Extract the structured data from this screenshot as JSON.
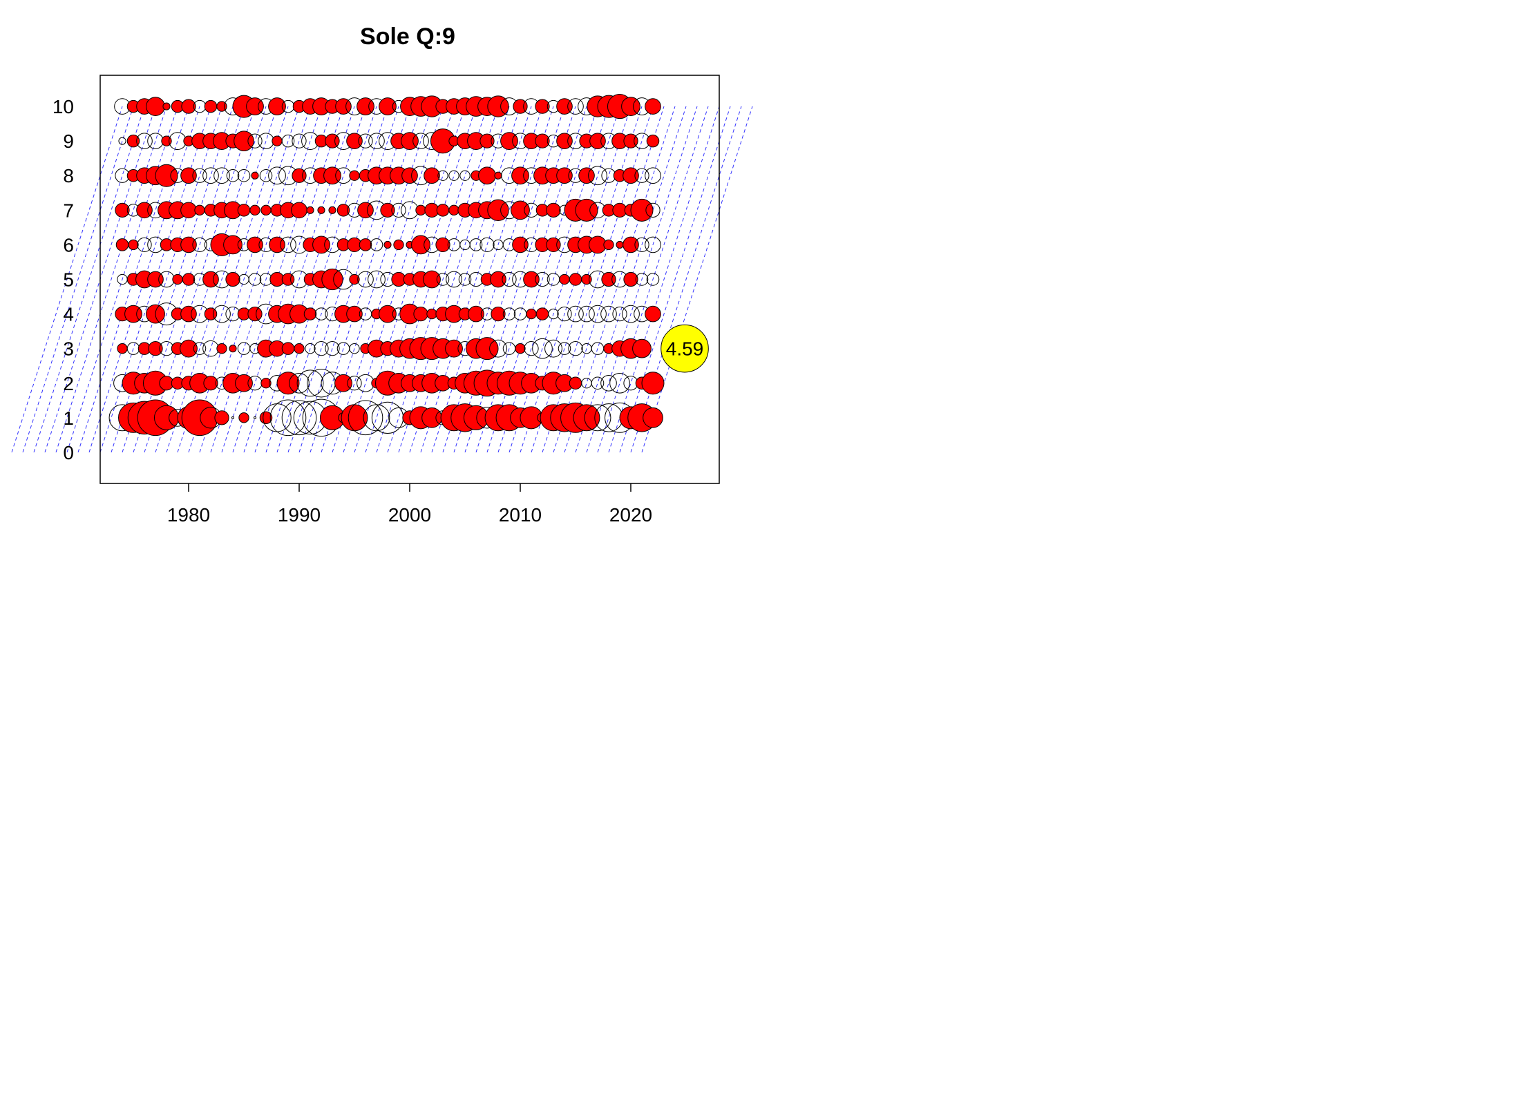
{
  "chart_data": {
    "type": "bubble",
    "title": "Sole Q:9",
    "xlabel": "",
    "ylabel": "",
    "xlim": [
      1972,
      2028
    ],
    "ylim": [
      -0.9,
      10.9
    ],
    "x_ticks": [
      1980,
      1990,
      2000,
      2010,
      2020
    ],
    "x_tick_labels": [
      "1980",
      "1990",
      "2000",
      "2010",
      "2020"
    ],
    "y_ticks": [
      0,
      1,
      2,
      3,
      4,
      5,
      6,
      7,
      8,
      9,
      10
    ],
    "y_tick_labels": [
      "0",
      "1",
      "2",
      "3",
      "4",
      "5",
      "6",
      "7",
      "8",
      "9",
      "10"
    ],
    "years_from": 1974,
    "years_to": 2022,
    "ages": [
      1,
      2,
      3,
      4,
      5,
      6,
      7,
      8,
      9,
      10
    ],
    "cohort_lines": {
      "color": "#3333ff",
      "dash": "dashed",
      "age_from": 0,
      "age_to": 10,
      "first_cohort": 1964,
      "last_cohort": 2021
    },
    "fill_positive": "#ff0000",
    "fill_negative": "none",
    "residuals": {
      "1": [
        -1.4,
        1.8,
        2.2,
        2.6,
        1.2,
        -0.6,
        1.0,
        2.6,
        -0.9,
        0.4,
        0,
        0.2,
        0,
        0.3,
        -1.6,
        -2.6,
        -2.4,
        -2.2,
        -2.8,
        1.2,
        0.2,
        1.4,
        -2.4,
        -1.4,
        -2.0,
        -0.8,
        0.4,
        1.0,
        0.8,
        -0.4,
        1.4,
        1.6,
        1.2,
        -0.9,
        1.4,
        1.4,
        0.8,
        1.0,
        0.2,
        1.4,
        1.6,
        1.8,
        1.4,
        -1.4,
        -1.6,
        -1.8,
        1.0,
        1.6,
        0.8
      ],
      "2": [
        -0.6,
        1.0,
        0.8,
        1.2,
        0.4,
        0.3,
        0.4,
        0.8,
        0.4,
        -0.3,
        0.8,
        0.6,
        -0.4,
        0.2,
        -0.5,
        1.0,
        -0.8,
        -1.4,
        -1.6,
        -1.0,
        0.6,
        -0.4,
        -0.6,
        0.2,
        1.2,
        0.8,
        0.6,
        0.6,
        0.8,
        0.5,
        0.3,
        0.8,
        1.2,
        1.4,
        1.0,
        1.2,
        1.0,
        0.8,
        0.4,
        1.0,
        0.6,
        0.3,
        -0.2,
        -0.3,
        -0.5,
        -0.8,
        -0.4,
        0.3,
        1.0
      ],
      "3": [
        0.2,
        -0.3,
        0.3,
        0.4,
        -0.4,
        0.3,
        0.6,
        -0.3,
        -0.5,
        0.2,
        0.1,
        -0.3,
        -0.2,
        0.6,
        0.5,
        0.3,
        0.2,
        -0.2,
        -0.4,
        -0.4,
        -0.3,
        -0.2,
        0.2,
        0.6,
        0.4,
        0.6,
        0.8,
        1.0,
        1.0,
        0.8,
        0.6,
        -0.4,
        0.8,
        1.0,
        -0.6,
        -0.3,
        0.2,
        -0.4,
        -0.8,
        -0.6,
        -0.3,
        -0.4,
        -0.2,
        -0.3,
        0.2,
        0.5,
        0.8,
        0.7,
        4.59
      ],
      "4": [
        0.4,
        0.6,
        -0.5,
        0.7,
        -1.0,
        0.3,
        0.5,
        -0.6,
        0.3,
        -0.6,
        -0.4,
        0.3,
        0.4,
        -0.8,
        0.6,
        0.8,
        0.7,
        0.3,
        -0.3,
        -0.4,
        0.6,
        0.5,
        -0.3,
        0.2,
        0.6,
        -0.3,
        0.8,
        0.4,
        0.2,
        0.4,
        0.6,
        0.3,
        0.5,
        -0.3,
        0.4,
        -0.3,
        -0.3,
        0.2,
        0.3,
        -0.2,
        -0.4,
        -0.5,
        -0.5,
        -0.6,
        -0.5,
        -0.4,
        -0.6,
        -0.5,
        0.5
      ],
      "5": [
        -0.2,
        0.3,
        0.6,
        0.5,
        -0.5,
        0.2,
        0.3,
        -0.3,
        0.5,
        -0.6,
        0.4,
        -0.2,
        -0.3,
        -0.3,
        0.4,
        0.3,
        -0.6,
        0.3,
        0.6,
        0.9,
        -0.8,
        0.2,
        -0.5,
        -0.6,
        -0.4,
        0.4,
        0.3,
        0.5,
        0.6,
        -0.3,
        -0.5,
        -0.3,
        -0.4,
        0.3,
        0.5,
        -0.4,
        -0.5,
        0.5,
        -0.4,
        -0.3,
        0.2,
        0.3,
        0.2,
        -0.6,
        0.4,
        -0.5,
        0.4,
        -0.3,
        -0.3
      ],
      "6": [
        0.3,
        0.2,
        -0.4,
        -0.5,
        0.3,
        0.4,
        0.5,
        -0.4,
        -0.3,
        1.0,
        0.7,
        -0.3,
        0.5,
        -0.4,
        0.5,
        -0.5,
        -0.6,
        0.4,
        0.6,
        -0.5,
        0.3,
        0.4,
        0.3,
        -0.3,
        0.1,
        0.2,
        0.1,
        0.7,
        -0.5,
        0.4,
        -0.3,
        -0.2,
        -0.3,
        -0.4,
        -0.2,
        -0.3,
        0.5,
        -0.4,
        0.4,
        0.4,
        -0.5,
        0.5,
        0.6,
        0.6,
        0.2,
        0.1,
        0.5,
        -0.4,
        -0.5
      ],
      "7": [
        0.4,
        -0.3,
        0.5,
        -0.5,
        0.6,
        0.6,
        0.5,
        0.2,
        0.3,
        0.5,
        0.6,
        0.3,
        0.2,
        0.2,
        0.3,
        0.5,
        0.5,
        0.1,
        0.1,
        0.1,
        0.3,
        -0.4,
        0.5,
        -0.7,
        0.4,
        -0.4,
        -0.6,
        0.2,
        0.4,
        0.3,
        0.2,
        0.4,
        0.5,
        0.6,
        0.9,
        -0.6,
        0.7,
        -0.4,
        0.3,
        0.4,
        -0.2,
        1.0,
        1.0,
        -0.5,
        0.3,
        0.4,
        0.3,
        1.0,
        -0.4
      ],
      "8": [
        -0.4,
        0.3,
        0.5,
        0.7,
        1.0,
        -0.4,
        0.5,
        -0.4,
        -0.5,
        -0.5,
        -0.3,
        -0.3,
        0.1,
        -0.3,
        -0.6,
        -0.7,
        0.4,
        -0.5,
        0.5,
        0.6,
        -0.5,
        0.2,
        0.3,
        0.6,
        0.6,
        0.6,
        0.5,
        -0.7,
        0.5,
        -0.2,
        -0.2,
        -0.2,
        0.2,
        0.6,
        0.1,
        -0.5,
        0.6,
        -0.5,
        0.6,
        0.5,
        0.5,
        -0.4,
        0.5,
        -0.7,
        -0.4,
        0.3,
        0.5,
        -0.4,
        -0.5
      ],
      "9": [
        -0.1,
        0.3,
        -0.5,
        -0.5,
        0.2,
        -0.6,
        0.2,
        0.5,
        0.5,
        0.6,
        0.4,
        0.8,
        -0.4,
        -0.5,
        0.2,
        -0.3,
        -0.4,
        -0.6,
        0.3,
        0.4,
        -0.6,
        0.5,
        -0.4,
        -0.5,
        -0.6,
        0.5,
        0.6,
        -0.5,
        -0.6,
        1.2,
        0.2,
        0.5,
        0.6,
        0.4,
        -0.4,
        0.6,
        -0.5,
        0.5,
        0.4,
        -0.3,
        0.5,
        -0.5,
        0.4,
        0.5,
        -0.5,
        0.5,
        0.4,
        -0.5,
        0.3
      ],
      "10": [
        -0.5,
        0.3,
        0.5,
        0.7,
        0.1,
        0.3,
        0.4,
        -0.3,
        0.3,
        0.2,
        -0.6,
        1.0,
        0.6,
        -0.5,
        0.6,
        -0.3,
        0.3,
        0.5,
        0.6,
        0.4,
        0.5,
        -0.6,
        0.6,
        -0.5,
        0.6,
        -0.3,
        0.7,
        0.8,
        0.9,
        0.4,
        0.5,
        0.6,
        0.8,
        0.7,
        0.9,
        -0.6,
        0.4,
        -0.5,
        0.4,
        -0.3,
        0.5,
        -0.5,
        -0.6,
        0.9,
        1.0,
        1.2,
        0.7,
        -0.6,
        0.5
      ]
    },
    "annotations": [
      {
        "label": "4.59",
        "year": 2022,
        "age": 3,
        "value": 4.59,
        "fill": "#ffff00"
      }
    ],
    "grid": false,
    "legend": "none"
  }
}
